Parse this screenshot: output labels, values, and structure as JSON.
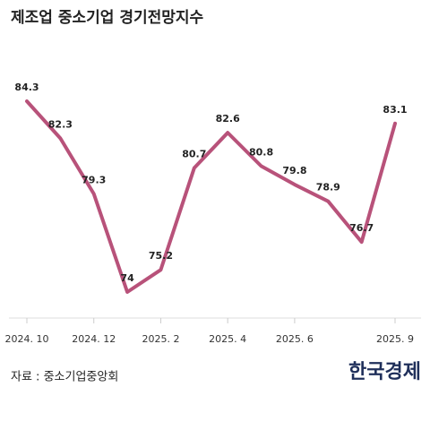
{
  "chart_data": {
    "type": "line",
    "title": "제조업 중소기업 경기전망지수",
    "categories": [
      "2024. 10",
      null,
      "2024. 12",
      null,
      "2025. 2",
      null,
      "2025. 4",
      null,
      "2025. 6",
      null,
      null,
      "2025. 9"
    ],
    "series": [
      {
        "name": "경기전망지수",
        "color": "#b8527a",
        "values": [
          84.3,
          82.3,
          79.3,
          74,
          75.2,
          80.7,
          82.6,
          80.8,
          79.8,
          78.9,
          76.7,
          83.1
        ]
      }
    ],
    "source": "자료 : 중소기업중앙회",
    "logo": "한국경제"
  }
}
